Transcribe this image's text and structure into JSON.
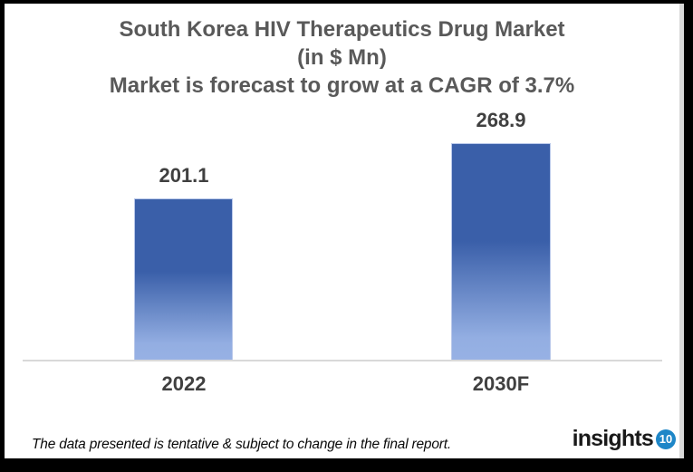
{
  "title": {
    "line1": "South Korea HIV Therapeutics Drug Market",
    "line2": "(in $ Mn)",
    "line3": "Market is forecast to grow at a CAGR of 3.7%"
  },
  "chart_data": {
    "type": "bar",
    "categories": [
      "2022",
      "2030F"
    ],
    "values": [
      201.1,
      268.9
    ],
    "title": "South Korea HIV Therapeutics Drug Market (in $ Mn)",
    "subtitle": "Market is forecast to grow at a CAGR of 3.7%",
    "xlabel": "",
    "ylabel": "",
    "ylim": [
      0,
      300
    ],
    "grid": false,
    "legend": "none",
    "data_labels": [
      "201.1",
      "268.9"
    ]
  },
  "footer": {
    "note": "The data presented is tentative & subject to change in the final report.",
    "logo_text": "insights",
    "logo_badge": "10"
  },
  "colors": {
    "bar_top": "#3A5FA9",
    "bar_bottom": "#93AEE2",
    "title_text": "#595959",
    "label_text": "#404040",
    "axis_line": "#D9D9D9",
    "logo_badge_bg": "#1E86C7",
    "logo_text_color": "#1A1A1A",
    "frame": "#000000"
  }
}
